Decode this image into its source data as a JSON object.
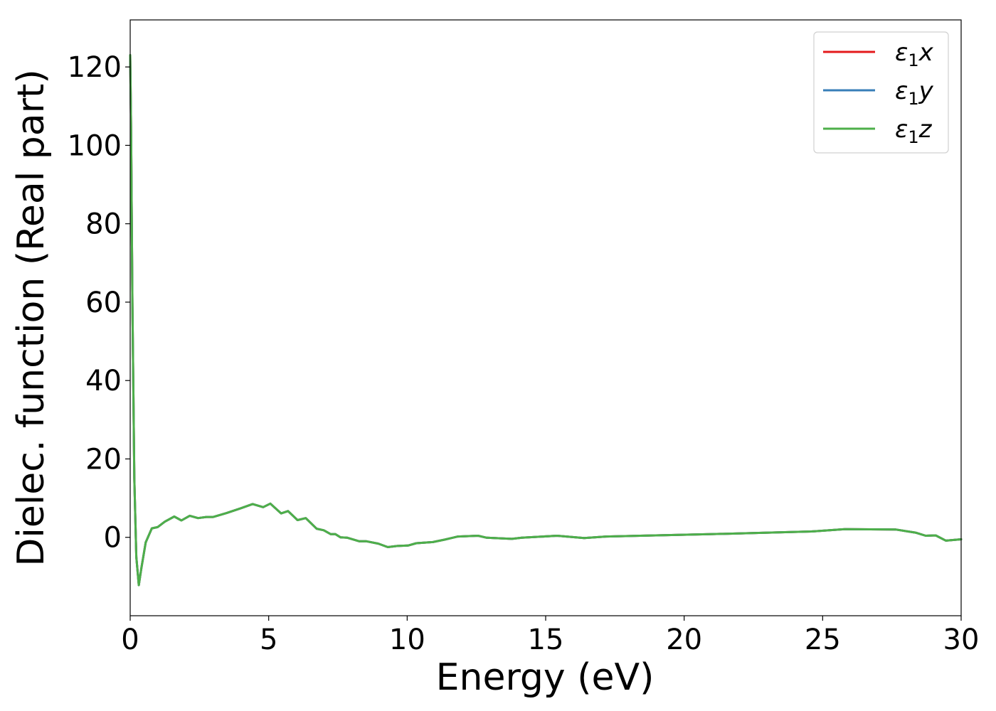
{
  "chart_data": {
    "type": "line",
    "xlabel": "Energy (eV)",
    "ylabel": "Dielec. function (Real part)",
    "xlim": [
      0,
      30
    ],
    "ylim": [
      -20,
      132
    ],
    "xticks": [
      0,
      5,
      10,
      15,
      20,
      25,
      30
    ],
    "yticks": [
      0,
      20,
      40,
      60,
      80,
      100,
      120
    ],
    "grid": false,
    "legend_placement": "top-right",
    "x": [
      0,
      0.03,
      0.08,
      0.15,
      0.22,
      0.31,
      0.4,
      0.56,
      0.78,
      0.99,
      1.25,
      1.59,
      1.85,
      2.15,
      2.45,
      2.75,
      3.0,
      3.48,
      3.99,
      4.42,
      4.8,
      5.06,
      5.45,
      5.7,
      6.04,
      6.34,
      6.73,
      6.99,
      7.24,
      7.41,
      7.59,
      7.84,
      8.27,
      8.53,
      8.96,
      9.3,
      9.64,
      10.03,
      10.33,
      10.93,
      11.35,
      11.83,
      12.56,
      12.87,
      13.78,
      14.14,
      15.41,
      16.39,
      17.18,
      20.94,
      24.59,
      25.8,
      27.63,
      28.35,
      28.72,
      29.08,
      29.45,
      30
    ],
    "series": [
      {
        "name": "ε1x",
        "label_base": "ε",
        "label_sub": "1",
        "label_axis": "x",
        "color": "#e41a1c",
        "values": [
          123,
          105,
          60,
          15,
          -5,
          -12.2,
          -8,
          -1.3,
          2.3,
          2.6,
          4.0,
          5.3,
          4.3,
          5.5,
          4.9,
          5.2,
          5.2,
          6.2,
          7.4,
          8.5,
          7.7,
          8.6,
          6.1,
          6.7,
          4.4,
          4.9,
          2.2,
          1.8,
          0.8,
          0.8,
          0,
          -0.1,
          -1.0,
          -1.0,
          -1.6,
          -2.5,
          -2.2,
          -2.1,
          -1.5,
          -1.2,
          -0.6,
          0.2,
          0.4,
          -0.1,
          -0.4,
          -0.1,
          0.4,
          -0.2,
          0.2,
          0.8,
          1.5,
          2.1,
          2.0,
          1.2,
          0.4,
          0.5,
          -0.85,
          -0.5
        ]
      },
      {
        "name": "ε1y",
        "label_base": "ε",
        "label_sub": "1",
        "label_axis": "y",
        "color": "#377eb8",
        "values": [
          123,
          105,
          60,
          15,
          -5,
          -12.2,
          -8,
          -1.3,
          2.3,
          2.6,
          4.0,
          5.3,
          4.3,
          5.5,
          4.9,
          5.2,
          5.2,
          6.2,
          7.4,
          8.5,
          7.7,
          8.6,
          6.1,
          6.7,
          4.4,
          4.9,
          2.2,
          1.8,
          0.8,
          0.8,
          0,
          -0.1,
          -1.0,
          -1.0,
          -1.6,
          -2.5,
          -2.2,
          -2.1,
          -1.5,
          -1.2,
          -0.6,
          0.2,
          0.4,
          -0.1,
          -0.4,
          -0.1,
          0.4,
          -0.2,
          0.2,
          0.8,
          1.5,
          2.1,
          2.0,
          1.2,
          0.4,
          0.5,
          -0.85,
          -0.5
        ]
      },
      {
        "name": "ε1z",
        "label_base": "ε",
        "label_sub": "1",
        "label_axis": "z",
        "color": "#4daf4a",
        "values": [
          123,
          105,
          60,
          15,
          -5,
          -12.2,
          -8,
          -1.3,
          2.3,
          2.6,
          4.0,
          5.3,
          4.3,
          5.5,
          4.9,
          5.2,
          5.2,
          6.2,
          7.4,
          8.5,
          7.7,
          8.6,
          6.1,
          6.7,
          4.4,
          4.9,
          2.2,
          1.8,
          0.8,
          0.8,
          0,
          -0.1,
          -1.0,
          -1.0,
          -1.6,
          -2.5,
          -2.2,
          -2.1,
          -1.5,
          -1.2,
          -0.6,
          0.2,
          0.4,
          -0.1,
          -0.4,
          -0.1,
          0.4,
          -0.2,
          0.2,
          0.8,
          1.5,
          2.1,
          2.0,
          1.2,
          0.4,
          0.5,
          -0.85,
          -0.5
        ]
      }
    ]
  }
}
